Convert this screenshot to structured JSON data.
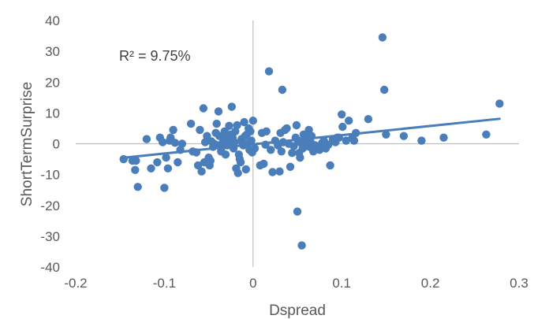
{
  "chart_data": {
    "type": "scatter",
    "xlabel": "Dspread",
    "ylabel": "ShortTermSurprise",
    "xlim": [
      -0.2,
      0.3
    ],
    "ylim": [
      -40,
      40
    ],
    "xticks": [
      -0.2,
      -0.1,
      0,
      0.1,
      0.2,
      0.3
    ],
    "xtick_labels": [
      "-0.2",
      "-0.1",
      "0",
      "0.1",
      "0.2",
      "0.3"
    ],
    "yticks": [
      -40,
      -30,
      -20,
      -10,
      0,
      10,
      20,
      30,
      40
    ],
    "ytick_labels": [
      "-40",
      "-30",
      "-20",
      "-10",
      "0",
      "10",
      "20",
      "30",
      "40"
    ],
    "grid": false,
    "annotation": "R² = 9.75%",
    "trendline": {
      "x": [
        -0.148,
        0.278
      ],
      "y": [
        -4.6,
        8.1
      ]
    },
    "colors": {
      "points": "#4a7ebb",
      "trendline": "#4a7ebb",
      "axis": "#bfbfbf"
    },
    "points": [
      [
        -0.146,
        -5
      ],
      [
        -0.136,
        -5.5
      ],
      [
        -0.133,
        -8.5
      ],
      [
        -0.132,
        -5.5
      ],
      [
        -0.13,
        -14
      ],
      [
        -0.12,
        1.5
      ],
      [
        -0.115,
        -8
      ],
      [
        -0.108,
        -6
      ],
      [
        -0.105,
        2
      ],
      [
        -0.102,
        0.5
      ],
      [
        -0.1,
        -14.3
      ],
      [
        -0.098,
        -4.5
      ],
      [
        -0.096,
        -8
      ],
      [
        -0.094,
        1
      ],
      [
        -0.093,
        2
      ],
      [
        -0.09,
        4.5
      ],
      [
        -0.088,
        0.3
      ],
      [
        -0.085,
        -6
      ],
      [
        -0.082,
        -2
      ],
      [
        -0.08,
        0
      ],
      [
        -0.07,
        6.5
      ],
      [
        -0.068,
        -2.5
      ],
      [
        -0.064,
        -2.8
      ],
      [
        -0.062,
        -7
      ],
      [
        -0.06,
        4.5
      ],
      [
        -0.058,
        -9
      ],
      [
        -0.056,
        11.5
      ],
      [
        -0.055,
        -6
      ],
      [
        -0.054,
        0.5
      ],
      [
        -0.052,
        2.5
      ],
      [
        -0.05,
        -4.5
      ],
      [
        -0.049,
        -7
      ],
      [
        -0.048,
        -5.5
      ],
      [
        -0.047,
        0.8
      ],
      [
        -0.045,
        -1
      ],
      [
        -0.044,
        0
      ],
      [
        -0.042,
        3.5
      ],
      [
        -0.041,
        6.5
      ],
      [
        -0.04,
        -0.5
      ],
      [
        -0.039,
        10.5
      ],
      [
        -0.038,
        2.5
      ],
      [
        -0.036,
        -2.5
      ],
      [
        -0.035,
        -1
      ],
      [
        -0.034,
        0.5
      ],
      [
        -0.033,
        1.5
      ],
      [
        -0.032,
        4
      ],
      [
        -0.031,
        -3.5
      ],
      [
        -0.03,
        2
      ],
      [
        -0.029,
        -0.5
      ],
      [
        -0.028,
        1
      ],
      [
        -0.027,
        5.8
      ],
      [
        -0.026,
        3
      ],
      [
        -0.025,
        0
      ],
      [
        -0.024,
        12
      ],
      [
        -0.023,
        2
      ],
      [
        -0.022,
        -1.5
      ],
      [
        -0.021,
        0.5
      ],
      [
        -0.02,
        4
      ],
      [
        -0.019,
        -8
      ],
      [
        -0.018,
        6
      ],
      [
        -0.017,
        -9.5
      ],
      [
        -0.016,
        -3.5
      ],
      [
        -0.015,
        -5
      ],
      [
        -0.014,
        -6
      ],
      [
        -0.013,
        1.5
      ],
      [
        -0.012,
        0.3
      ],
      [
        -0.011,
        -0.5
      ],
      [
        -0.01,
        7
      ],
      [
        -0.009,
        2.5
      ],
      [
        -0.008,
        -8.3
      ],
      [
        -0.007,
        3
      ],
      [
        -0.006,
        0
      ],
      [
        -0.005,
        5
      ],
      [
        -0.004,
        -2
      ],
      [
        -0.003,
        4
      ],
      [
        -0.002,
        1
      ],
      [
        -0.001,
        -2.8
      ],
      [
        0,
        7.5
      ],
      [
        0.002,
        -1.5
      ],
      [
        0.008,
        -7
      ],
      [
        0.01,
        3.5
      ],
      [
        0.012,
        -6.5
      ],
      [
        0.014,
        -0.3
      ],
      [
        0.015,
        4
      ],
      [
        0.018,
        23.5
      ],
      [
        0.02,
        -2
      ],
      [
        0.022,
        -9.2
      ],
      [
        0.025,
        1
      ],
      [
        0.028,
        -0.5
      ],
      [
        0.03,
        -9
      ],
      [
        0.031,
        3.5
      ],
      [
        0.032,
        -2.5
      ],
      [
        0.033,
        17.5
      ],
      [
        0.034,
        0.5
      ],
      [
        0.036,
        4.5
      ],
      [
        0.038,
        5
      ],
      [
        0.04,
        0
      ],
      [
        0.042,
        -7.5
      ],
      [
        0.044,
        -3
      ],
      [
        0.046,
        -0.8
      ],
      [
        0.048,
        2
      ],
      [
        0.049,
        6
      ],
      [
        0.05,
        -22
      ],
      [
        0.051,
        1
      ],
      [
        0.052,
        -3
      ],
      [
        0.053,
        -4.5
      ],
      [
        0.054,
        0.3
      ],
      [
        0.055,
        -33
      ],
      [
        0.056,
        -1.5
      ],
      [
        0.057,
        3
      ],
      [
        0.058,
        0.5
      ],
      [
        0.06,
        -0.8
      ],
      [
        0.061,
        2
      ],
      [
        0.062,
        3.5
      ],
      [
        0.063,
        4.5
      ],
      [
        0.064,
        -1
      ],
      [
        0.065,
        0.5
      ],
      [
        0.066,
        2.5
      ],
      [
        0.068,
        -2.5
      ],
      [
        0.07,
        -0.5
      ],
      [
        0.075,
        -2
      ],
      [
        0.078,
        0.3
      ],
      [
        0.08,
        1
      ],
      [
        0.082,
        -1.5
      ],
      [
        0.085,
        -0.3
      ],
      [
        0.087,
        -7
      ],
      [
        0.09,
        1.5
      ],
      [
        0.093,
        0.5
      ],
      [
        0.095,
        2
      ],
      [
        0.097,
        2
      ],
      [
        0.1,
        9.5
      ],
      [
        0.101,
        5.5
      ],
      [
        0.105,
        1
      ],
      [
        0.108,
        7.5
      ],
      [
        0.112,
        2
      ],
      [
        0.114,
        1
      ],
      [
        0.116,
        3.5
      ],
      [
        0.13,
        8
      ],
      [
        0.146,
        34.5
      ],
      [
        0.148,
        17.5
      ],
      [
        0.15,
        3
      ],
      [
        0.17,
        2.5
      ],
      [
        0.19,
        1
      ],
      [
        0.215,
        2
      ],
      [
        0.263,
        3
      ],
      [
        0.278,
        13
      ]
    ]
  }
}
